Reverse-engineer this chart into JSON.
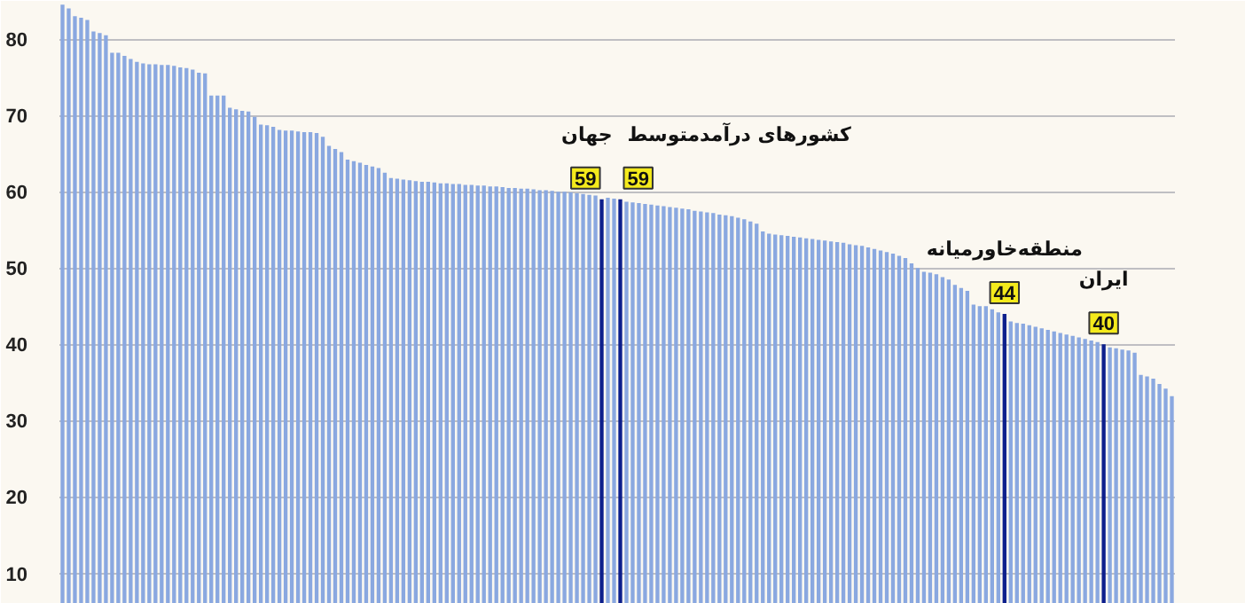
{
  "chart_data": {
    "type": "bar",
    "categories": [
      null,
      null,
      null,
      null,
      null,
      null,
      null,
      null,
      null,
      null,
      null,
      null,
      null,
      null,
      null,
      null,
      null,
      null,
      null,
      null,
      null,
      null,
      null,
      null,
      null,
      null,
      null,
      null,
      null,
      null,
      null,
      null,
      null,
      null,
      null,
      null,
      null,
      null,
      null,
      null,
      null,
      null,
      null,
      null,
      null,
      null,
      null,
      null,
      null,
      null,
      null,
      null,
      null,
      null,
      null,
      null,
      null,
      null,
      null,
      null,
      null,
      null,
      null,
      null,
      null,
      null,
      null,
      null,
      null,
      null,
      null,
      null,
      null,
      null,
      null,
      null,
      null,
      null,
      null,
      null,
      null,
      null,
      null,
      null,
      null,
      null,
      null,
      null,
      null,
      null,
      null,
      null,
      null,
      null,
      null,
      null,
      null,
      null,
      null,
      null,
      null,
      null,
      null,
      null,
      null,
      null,
      null,
      null,
      null,
      null,
      null,
      null,
      null,
      null,
      null,
      null,
      null,
      null,
      null,
      null,
      null,
      null,
      null,
      null,
      null,
      null,
      null,
      null,
      null,
      null,
      null,
      null,
      null,
      null,
      null,
      null,
      null,
      null,
      null,
      null,
      null,
      null,
      null,
      null,
      null,
      null,
      null,
      null,
      null,
      null,
      null,
      null,
      null,
      null,
      null,
      null,
      null,
      null,
      null,
      null,
      null,
      null,
      null,
      null,
      null,
      null,
      null,
      null,
      null,
      null,
      null,
      null,
      null,
      null,
      null,
      null,
      null,
      null,
      null,
      null
    ],
    "values": [
      84.5,
      84,
      83,
      82.8,
      82.5,
      81,
      80.8,
      80.5,
      78.2,
      78.2,
      77.8,
      77.4,
      77,
      76.8,
      76.7,
      76.7,
      76.6,
      76.6,
      76.5,
      76.3,
      76.2,
      76,
      75.6,
      75.5,
      72.6,
      72.6,
      72.6,
      71,
      70.8,
      70.6,
      70.5,
      69.8,
      68.8,
      68.7,
      68.5,
      68.1,
      68,
      68,
      67.9,
      67.8,
      67.8,
      67.7,
      67.2,
      66,
      65.6,
      65.2,
      64.2,
      64,
      63.8,
      63.5,
      63.3,
      63.1,
      62.5,
      61.8,
      61.7,
      61.6,
      61.5,
      61.4,
      61.3,
      61.3,
      61.2,
      61.1,
      61.1,
      61.0,
      61.0,
      60.9,
      60.9,
      60.8,
      60.8,
      60.7,
      60.7,
      60.6,
      60.5,
      60.5,
      60.4,
      60.4,
      60.3,
      60.2,
      60.2,
      60.1,
      60.0,
      60.0,
      59.9,
      59.8,
      59.7,
      59.6,
      59.5,
      59,
      59.2,
      59.1,
      59,
      58.7,
      58.6,
      58.5,
      58.4,
      58.3,
      58.2,
      58.1,
      58.0,
      57.9,
      57.8,
      57.7,
      57.5,
      57.4,
      57.3,
      57.2,
      57.0,
      56.9,
      56.8,
      56.6,
      56.4,
      56.1,
      55.8,
      54.8,
      54.5,
      54.4,
      54.3,
      54.2,
      54.1,
      54.0,
      53.9,
      53.8,
      53.7,
      53.6,
      53.5,
      53.4,
      53.3,
      53.1,
      53.0,
      52.9,
      52.7,
      52.5,
      52.3,
      52.1,
      51.9,
      51.6,
      51.3,
      50.6,
      50,
      49.5,
      49.4,
      49.2,
      48.8,
      48.5,
      47.8,
      47.4,
      47,
      45.2,
      45,
      45,
      44.6,
      44.2,
      44,
      43.0,
      42.8,
      42.7,
      42.5,
      42.3,
      42.1,
      41.9,
      41.7,
      41.5,
      41.3,
      41.1,
      40.9,
      40.7,
      40.5,
      40.3,
      40,
      39.6,
      39.5,
      39.3,
      39.2,
      38.9,
      36,
      35.8,
      35.5,
      34.8,
      34.2,
      33.2
    ],
    "colors": [
      "#8aa8e0",
      "#8aa8e0",
      "#8aa8e0",
      "#8aa8e0",
      "#8aa8e0",
      "#8aa8e0",
      "#8aa8e0",
      "#8aa8e0",
      "#8aa8e0",
      "#8aa8e0",
      "#8aa8e0",
      "#8aa8e0",
      "#8aa8e0",
      "#8aa8e0",
      "#8aa8e0",
      "#8aa8e0",
      "#8aa8e0",
      "#8aa8e0",
      "#8aa8e0",
      "#8aa8e0",
      "#8aa8e0",
      "#8aa8e0",
      "#8aa8e0",
      "#8aa8e0",
      "#8aa8e0",
      "#8aa8e0",
      "#8aa8e0",
      "#8aa8e0",
      "#8aa8e0",
      "#8aa8e0",
      "#8aa8e0",
      "#8aa8e0",
      "#8aa8e0",
      "#8aa8e0",
      "#8aa8e0",
      "#8aa8e0",
      "#8aa8e0",
      "#8aa8e0",
      "#8aa8e0",
      "#8aa8e0",
      "#8aa8e0",
      "#8aa8e0",
      "#8aa8e0",
      "#8aa8e0",
      "#8aa8e0",
      "#8aa8e0",
      "#8aa8e0",
      "#8aa8e0",
      "#8aa8e0",
      "#8aa8e0",
      "#8aa8e0",
      "#8aa8e0",
      "#8aa8e0",
      "#8aa8e0",
      "#8aa8e0",
      "#8aa8e0",
      "#8aa8e0",
      "#8aa8e0",
      "#8aa8e0",
      "#8aa8e0",
      "#8aa8e0",
      "#8aa8e0",
      "#8aa8e0",
      "#8aa8e0",
      "#8aa8e0",
      "#8aa8e0",
      "#8aa8e0",
      "#8aa8e0",
      "#8aa8e0",
      "#8aa8e0",
      "#8aa8e0",
      "#8aa8e0",
      "#8aa8e0",
      "#8aa8e0",
      "#8aa8e0",
      "#8aa8e0",
      "#8aa8e0",
      "#8aa8e0",
      "#8aa8e0",
      "#8aa8e0",
      "#8aa8e0",
      "#8aa8e0",
      "#8aa8e0",
      "#8aa8e0",
      "#8aa8e0",
      "#8aa8e0",
      "#8aa8e0",
      "#0d1f8c",
      "#8aa8e0",
      "#8aa8e0",
      "#0d1f8c",
      "#8aa8e0",
      "#8aa8e0",
      "#8aa8e0",
      "#8aa8e0",
      "#8aa8e0",
      "#8aa8e0",
      "#8aa8e0",
      "#8aa8e0",
      "#8aa8e0",
      "#8aa8e0",
      "#8aa8e0",
      "#8aa8e0",
      "#8aa8e0",
      "#8aa8e0",
      "#8aa8e0",
      "#8aa8e0",
      "#8aa8e0",
      "#8aa8e0",
      "#8aa8e0",
      "#8aa8e0",
      "#8aa8e0",
      "#8aa8e0",
      "#8aa8e0",
      "#8aa8e0",
      "#8aa8e0",
      "#8aa8e0",
      "#8aa8e0",
      "#8aa8e0",
      "#8aa8e0",
      "#8aa8e0",
      "#8aa8e0",
      "#8aa8e0",
      "#8aa8e0",
      "#8aa8e0",
      "#8aa8e0",
      "#8aa8e0",
      "#8aa8e0",
      "#8aa8e0",
      "#8aa8e0",
      "#8aa8e0",
      "#8aa8e0",
      "#8aa8e0",
      "#8aa8e0",
      "#8aa8e0",
      "#8aa8e0",
      "#8aa8e0",
      "#8aa8e0",
      "#8aa8e0",
      "#8aa8e0",
      "#8aa8e0",
      "#8aa8e0",
      "#8aa8e0",
      "#8aa8e0",
      "#8aa8e0",
      "#8aa8e0",
      "#8aa8e0",
      "#8aa8e0",
      "#8aa8e0",
      "#8aa8e0",
      "#8aa8e0",
      "#8aa8e0",
      "#0d1f8c",
      "#8aa8e0",
      "#8aa8e0",
      "#8aa8e0",
      "#8aa8e0",
      "#8aa8e0",
      "#8aa8e0",
      "#8aa8e0",
      "#8aa8e0",
      "#8aa8e0",
      "#8aa8e0",
      "#8aa8e0",
      "#8aa8e0",
      "#8aa8e0",
      "#8aa8e0",
      "#8aa8e0",
      "#0d1f8c",
      "#8aa8e0",
      "#8aa8e0",
      "#8aa8e0",
      "#8aa8e0",
      "#8aa8e0",
      "#8aa8e0",
      "#8aa8e0",
      "#8aa8e0",
      "#8aa8e0",
      "#8aa8e0",
      "#8aa8e0"
    ],
    "value_labels": [
      null,
      null,
      null,
      null,
      null,
      null,
      null,
      null,
      null,
      null,
      null,
      null,
      null,
      null,
      null,
      null,
      null,
      null,
      null,
      null,
      null,
      null,
      null,
      null,
      null,
      null,
      null,
      null,
      null,
      null,
      null,
      null,
      null,
      null,
      null,
      null,
      null,
      null,
      null,
      null,
      null,
      null,
      null,
      null,
      null,
      null,
      null,
      null,
      null,
      null,
      null,
      null,
      null,
      null,
      null,
      null,
      null,
      null,
      null,
      null,
      null,
      null,
      null,
      null,
      null,
      null,
      null,
      null,
      null,
      null,
      null,
      null,
      null,
      null,
      null,
      null,
      null,
      null,
      null,
      null,
      null,
      null,
      null,
      null,
      null,
      null,
      null,
      "59",
      null,
      null,
      "59",
      null,
      null,
      null,
      null,
      null,
      null,
      null,
      null,
      null,
      null,
      null,
      null,
      null,
      null,
      null,
      null,
      null,
      null,
      null,
      null,
      null,
      null,
      null,
      null,
      null,
      null,
      null,
      null,
      null,
      null,
      null,
      null,
      null,
      null,
      null,
      null,
      null,
      null,
      null,
      null,
      null,
      null,
      null,
      null,
      null,
      null,
      null,
      null,
      null,
      null,
      null,
      null,
      null,
      null,
      null,
      null,
      null,
      null,
      null,
      null,
      null,
      "44",
      null,
      null,
      null,
      null,
      null,
      null,
      null,
      null,
      null,
      null,
      null,
      null,
      null,
      null,
      null,
      "40",
      null,
      null,
      null,
      null,
      null,
      null,
      null,
      null,
      null,
      null,
      null
    ],
    "annotations": [
      "جهان",
      "کشورهای درآمدمتوسط",
      "منطقه‌خاورمیانه",
      "ایران"
    ],
    "ylim": [
      6,
      85
    ],
    "yticks": [
      10,
      20,
      30,
      40,
      50,
      60,
      70,
      80
    ],
    "grid": "y"
  }
}
